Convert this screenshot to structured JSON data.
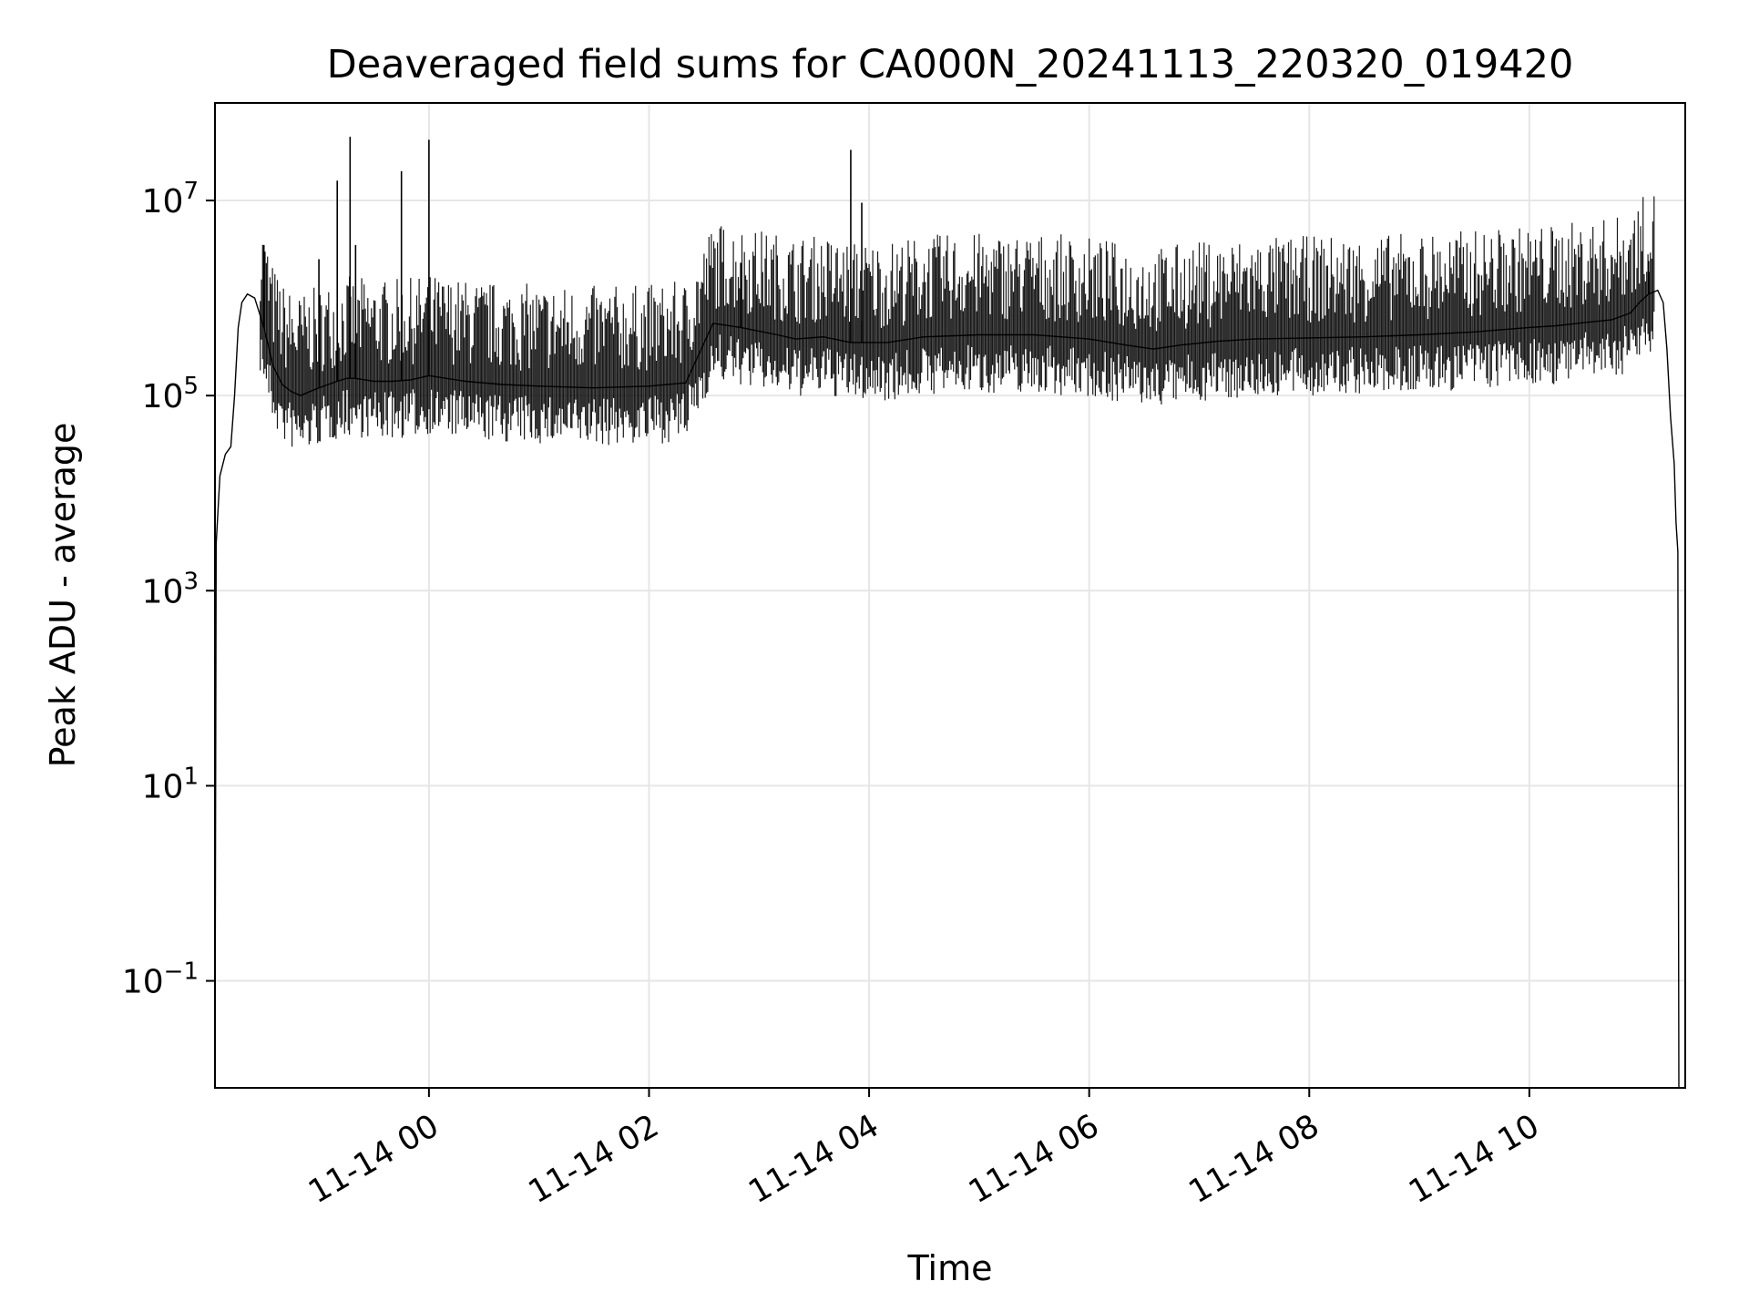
{
  "chart_data": {
    "type": "line",
    "title": "Deaveraged field sums for CA000N_20241113_220320_019420",
    "xlabel": "Time",
    "ylabel": "Peak ADU - average",
    "yscale": "log",
    "grid": true,
    "legend": "none",
    "line_color": "#000000",
    "grid_color": "#e6e6e6",
    "xlim": [
      "2024-11-13T22:03:20",
      "2024-11-14T11:25:00"
    ],
    "ylim": [
      0.008,
      100000000
    ],
    "xticks": [
      {
        "t": "2024-11-14T00:00:00",
        "label": "11-14 00"
      },
      {
        "t": "2024-11-14T02:00:00",
        "label": "11-14 02"
      },
      {
        "t": "2024-11-14T04:00:00",
        "label": "11-14 04"
      },
      {
        "t": "2024-11-14T06:00:00",
        "label": "11-14 06"
      },
      {
        "t": "2024-11-14T08:00:00",
        "label": "11-14 08"
      },
      {
        "t": "2024-11-14T10:00:00",
        "label": "11-14 10"
      }
    ],
    "yticks": [
      {
        "value": 0.1,
        "base": "10",
        "exp": "−1"
      },
      {
        "value": 10,
        "base": "10",
        "exp": "1"
      },
      {
        "value": 1000,
        "base": "10",
        "exp": "3"
      },
      {
        "value": 100000,
        "base": "10",
        "exp": "5"
      },
      {
        "value": 10000000,
        "base": "10",
        "exp": "7"
      }
    ],
    "series": [
      {
        "x": [
          "2024-11-13T22:03:20",
          "2024-11-13T22:04:00",
          "2024-11-13T22:06:00",
          "2024-11-13T22:09:00",
          "2024-11-13T22:12:00",
          "2024-11-13T22:14:00",
          "2024-11-13T22:16:00",
          "2024-11-13T22:18:00",
          "2024-11-13T22:21:00",
          "2024-11-13T22:25:00",
          "2024-11-13T22:30:00",
          "2024-11-13T22:35:00",
          "2024-11-13T22:40:00",
          "2024-11-13T22:45:00",
          "2024-11-13T22:50:00",
          "2024-11-13T22:55:00",
          "2024-11-13T23:00:00",
          "2024-11-13T23:05:00",
          "2024-11-13T23:10:00",
          "2024-11-13T23:15:00",
          "2024-11-13T23:20:00",
          "2024-11-13T23:30:00",
          "2024-11-13T23:40:00",
          "2024-11-13T23:50:00",
          "2024-11-14T00:00:00",
          "2024-11-14T00:20:00",
          "2024-11-14T00:40:00",
          "2024-11-14T01:00:00",
          "2024-11-14T01:30:00",
          "2024-11-14T02:00:00",
          "2024-11-14T02:20:00",
          "2024-11-14T02:35:00",
          "2024-11-14T02:50:00",
          "2024-11-14T03:10:00",
          "2024-11-14T03:20:00",
          "2024-11-14T03:35:00",
          "2024-11-14T03:50:00",
          "2024-11-14T04:10:00",
          "2024-11-14T04:30:00",
          "2024-11-14T05:00:00",
          "2024-11-14T05:30:00",
          "2024-11-14T06:00:00",
          "2024-11-14T06:20:00",
          "2024-11-14T06:35:00",
          "2024-11-14T06:50:00",
          "2024-11-14T07:10:00",
          "2024-11-14T07:30:00",
          "2024-11-14T08:00:00",
          "2024-11-14T08:30:00",
          "2024-11-14T09:00:00",
          "2024-11-14T09:30:00",
          "2024-11-14T10:00:00",
          "2024-11-14T10:15:00",
          "2024-11-14T10:30:00",
          "2024-11-14T10:45:00",
          "2024-11-14T10:55:00",
          "2024-11-14T11:00:00",
          "2024-11-14T11:05:00",
          "2024-11-14T11:10:00",
          "2024-11-14T11:13:00",
          "2024-11-14T11:15:00",
          "2024-11-14T11:17:00",
          "2024-11-14T11:19:00",
          "2024-11-14T11:20:00",
          "2024-11-14T11:21:00",
          "2024-11-14T11:21:30"
        ],
        "y": [
          0.008,
          3000,
          15000,
          25000,
          30000,
          100000,
          500000,
          900000,
          1100000,
          1000000,
          500000,
          200000,
          130000,
          110000,
          100000,
          110000,
          120000,
          130000,
          140000,
          150000,
          150000,
          140000,
          140000,
          145000,
          160000,
          140000,
          130000,
          125000,
          120000,
          125000,
          135000,
          550000,
          500000,
          420000,
          380000,
          400000,
          350000,
          350000,
          400000,
          420000,
          420000,
          380000,
          330000,
          300000,
          330000,
          360000,
          380000,
          390000,
          400000,
          420000,
          450000,
          500000,
          520000,
          560000,
          600000,
          700000,
          900000,
          1100000,
          1200000,
          900000,
          300000,
          60000,
          20000,
          5000,
          2500,
          0.008
        ]
      }
    ],
    "spikes": [
      {
        "x": "2024-11-13T22:30:00",
        "y": 3500000
      },
      {
        "x": "2024-11-13T23:00:00",
        "y": 2500000
      },
      {
        "x": "2024-11-13T23:10:00",
        "y": 16000000
      },
      {
        "x": "2024-11-13T23:17:00",
        "y": 45000000
      },
      {
        "x": "2024-11-13T23:20:00",
        "y": 3500000
      },
      {
        "x": "2024-11-13T23:45:00",
        "y": 20000000
      },
      {
        "x": "2024-11-14T00:00:00",
        "y": 42000000
      },
      {
        "x": "2024-11-14T02:50:00",
        "y": 2300000
      },
      {
        "x": "2024-11-14T03:50:00",
        "y": 33000000
      },
      {
        "x": "2024-11-14T03:56:00",
        "y": 9500000
      },
      {
        "x": "2024-11-14T11:05:00",
        "y": 2400000
      }
    ]
  }
}
